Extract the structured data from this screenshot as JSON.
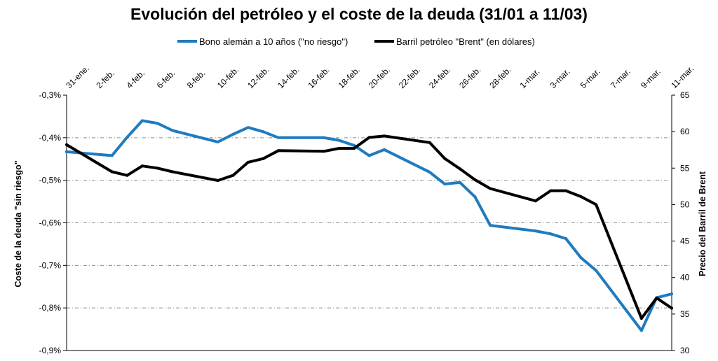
{
  "chart_data": {
    "type": "line",
    "title": "Evolución del petróleo y el coste de la deuda (31/01 a 11/03)",
    "ylabel": "Coste de la deuda \"sin riesgo\"",
    "y2label": "Precio del Barril de Brent",
    "legend_position": "top",
    "grid": true,
    "x_tick_labels": [
      "31-ene.",
      "2-feb.",
      "4-feb.",
      "6-feb.",
      "8-feb.",
      "10-feb.",
      "12-feb.",
      "14-feb.",
      "16-feb.",
      "18-feb.",
      "20-feb.",
      "22-feb.",
      "24-feb.",
      "26-feb.",
      "28-feb.",
      "1-mar.",
      "3-mar.",
      "5-mar.",
      "7-mar.",
      "9-mar.",
      "11-mar."
    ],
    "x_dates": [
      "31-ene.",
      "1-feb.",
      "2-feb.",
      "3-feb.",
      "4-feb.",
      "5-feb.",
      "6-feb.",
      "7-feb.",
      "8-feb.",
      "9-feb.",
      "10-feb.",
      "11-feb.",
      "12-feb.",
      "13-feb.",
      "14-feb.",
      "15-feb.",
      "16-feb.",
      "17-feb.",
      "18-feb.",
      "19-feb.",
      "20-feb.",
      "21-feb.",
      "22-feb.",
      "23-feb.",
      "24-feb.",
      "25-feb.",
      "26-feb.",
      "27-feb.",
      "28-feb.",
      "29-feb.",
      "1-mar.",
      "2-mar.",
      "3-mar.",
      "4-mar.",
      "5-mar.",
      "6-mar.",
      "7-mar.",
      "8-mar.",
      "9-mar.",
      "10-mar.",
      "11-mar."
    ],
    "y_left": {
      "tick_labels": [
        "-0,3%",
        "-0,4%",
        "-0,5%",
        "-0,6%",
        "-0,7%",
        "-0,8%",
        "-0,9%"
      ],
      "ylim": [
        -0.9,
        -0.3
      ]
    },
    "y_right": {
      "tick_labels": [
        "65",
        "60",
        "55",
        "50",
        "45",
        "40",
        "35",
        "30"
      ],
      "ylim": [
        30,
        65
      ]
    },
    "series": [
      {
        "name": "Bono alemán a 10 años (\"no riesgo\")",
        "axis": "left",
        "color": "#1f7bbf",
        "x": [
          "31-ene.",
          "3-feb.",
          "4-feb.",
          "5-feb.",
          "6-feb.",
          "7-feb.",
          "10-feb.",
          "11-feb.",
          "12-feb.",
          "13-feb.",
          "14-feb.",
          "17-feb.",
          "18-feb.",
          "19-feb.",
          "20-feb.",
          "21-feb.",
          "24-feb.",
          "25-feb.",
          "26-feb.",
          "27-feb.",
          "28-feb.",
          "2-mar.",
          "3-mar.",
          "4-mar.",
          "5-mar.",
          "6-mar.",
          "9-mar.",
          "10-mar.",
          "11-mar."
        ],
        "values": [
          -0.433,
          -0.442,
          -0.399,
          -0.36,
          -0.366,
          -0.383,
          -0.41,
          -0.392,
          -0.376,
          -0.386,
          -0.4,
          -0.4,
          -0.406,
          -0.418,
          -0.442,
          -0.428,
          -0.481,
          -0.509,
          -0.505,
          -0.539,
          -0.606,
          -0.619,
          -0.626,
          -0.637,
          -0.682,
          -0.712,
          -0.853,
          -0.776,
          -0.767
        ]
      },
      {
        "name": "Barril petróleo \"Brent\" (en dólares)",
        "axis": "right",
        "color": "#000000",
        "x": [
          "31-ene.",
          "3-feb.",
          "4-feb.",
          "5-feb.",
          "6-feb.",
          "7-feb.",
          "10-feb.",
          "11-feb.",
          "12-feb.",
          "13-feb.",
          "14-feb.",
          "17-feb.",
          "18-feb.",
          "19-feb.",
          "20-feb.",
          "21-feb.",
          "24-feb.",
          "25-feb.",
          "26-feb.",
          "27-feb.",
          "28-feb.",
          "2-mar.",
          "3-mar.",
          "4-mar.",
          "5-mar.",
          "6-mar.",
          "9-mar.",
          "10-mar.",
          "11-mar."
        ],
        "values": [
          58.2,
          54.5,
          54.0,
          55.3,
          55.0,
          54.5,
          53.3,
          54.0,
          55.8,
          56.3,
          57.4,
          57.3,
          57.7,
          57.7,
          59.2,
          59.4,
          58.5,
          56.3,
          54.9,
          53.4,
          52.2,
          50.5,
          51.9,
          51.9,
          51.1,
          50.0,
          34.4,
          37.2,
          35.8
        ]
      }
    ]
  }
}
